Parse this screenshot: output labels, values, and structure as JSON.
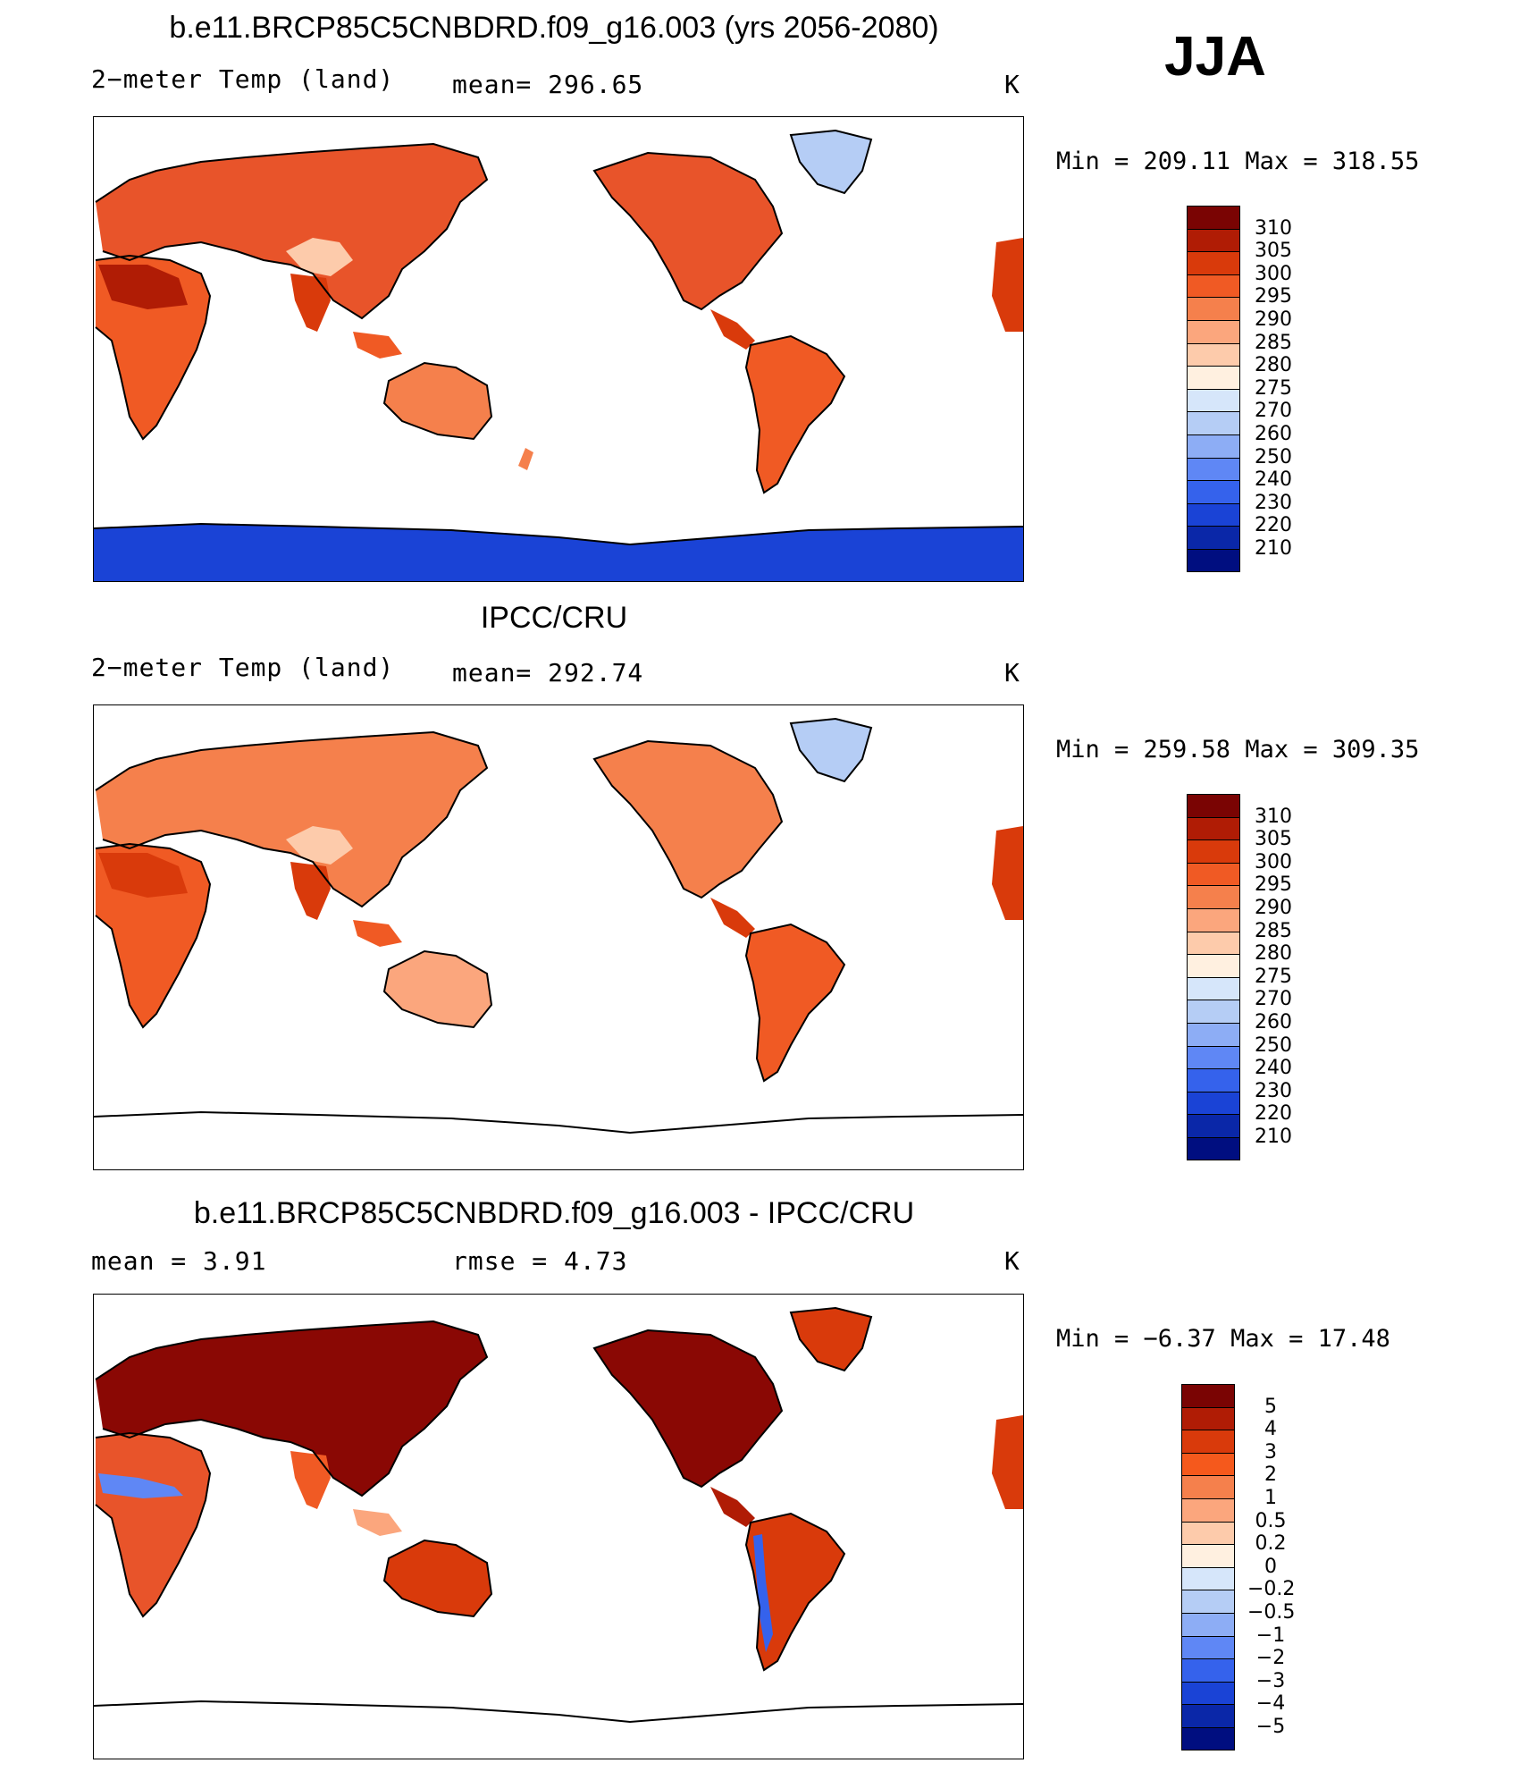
{
  "season": "JJA",
  "colors": {
    "abs": [
      "#7a0403",
      "#b01c05",
      "#d93a0b",
      "#f05a24",
      "#f5804c",
      "#fba67d",
      "#fdcbab",
      "#fff0e0",
      "#d6e6fa",
      "#b5cdf5",
      "#8dadf5",
      "#5f87f5",
      "#3562ec",
      "#1a43d6",
      "#0a27a8",
      "#000e80"
    ],
    "diff": [
      "#7a0403",
      "#b01c05",
      "#d93a0b",
      "#f5591c",
      "#f5804c",
      "#fba67d",
      "#fdcbab",
      "#fff0e0",
      "#d6e6fa",
      "#b5cdf5",
      "#8dadf5",
      "#5f87f5",
      "#3562ec",
      "#1a43d6",
      "#0a27a8",
      "#000e80"
    ]
  },
  "panels": [
    {
      "title": "b.e11.BRCP85C5CNBDRD.f09_g16.003 (yrs 2056-2080)",
      "left_label": "2−meter Temp (land)",
      "stat1": "mean=  296.65",
      "stat2": "",
      "units": "K",
      "minmax": "Min  =  209.11  Max  =  318.55",
      "colorbar": {
        "type": "abs",
        "ticks": [
          "310",
          "305",
          "300",
          "295",
          "290",
          "285",
          "280",
          "275",
          "270",
          "260",
          "250",
          "240",
          "230",
          "220",
          "210"
        ]
      }
    },
    {
      "title": "IPCC/CRU",
      "left_label": "2−meter Temp (land)",
      "stat1": "mean=  292.74",
      "stat2": "",
      "units": "K",
      "minmax": "Min  =  259.58  Max  =  309.35",
      "colorbar": {
        "type": "abs",
        "ticks": [
          "310",
          "305",
          "300",
          "295",
          "290",
          "285",
          "280",
          "275",
          "270",
          "260",
          "250",
          "240",
          "230",
          "220",
          "210"
        ]
      }
    },
    {
      "title": "b.e11.BRCP85C5CNBDRD.f09_g16.003 - IPCC/CRU",
      "left_label": "mean  =      3.91",
      "stat1": "rmse  =      4.73",
      "stat2": "",
      "units": "K",
      "minmax": "Min  =    −6.37  Max  =    17.48",
      "colorbar": {
        "type": "diff",
        "ticks": [
          "5",
          "4",
          "3",
          "2",
          "1",
          "0.5",
          "0.2",
          "0",
          "−0.2",
          "−0.5",
          "−1",
          "−2",
          "−3",
          "−4",
          "−5"
        ]
      }
    }
  ]
}
